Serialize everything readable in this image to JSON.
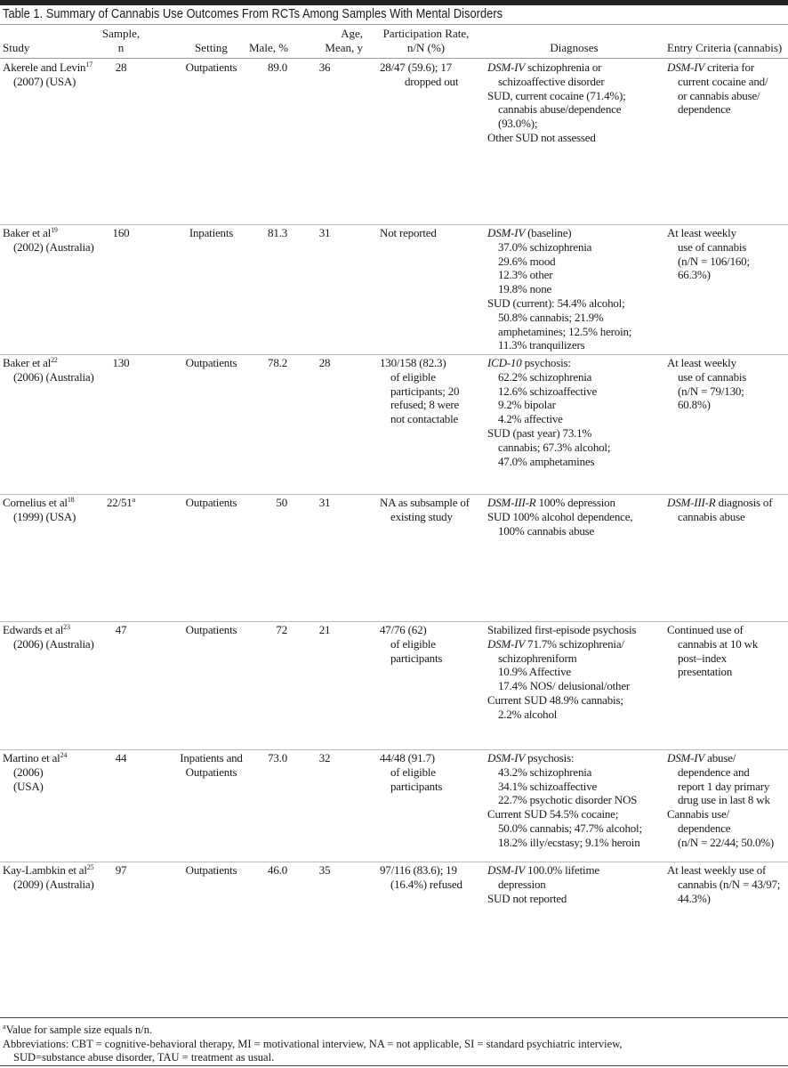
{
  "title": "Table 1. Summary of Cannabis Use Outcomes From RCTs Among Samples With Mental Disorders",
  "headers": {
    "study": "Study",
    "sample": [
      "Sample,",
      "n"
    ],
    "setting": "Setting",
    "male": "Male, %",
    "age": [
      "Age,",
      "Mean, y"
    ],
    "participation": [
      "Participation Rate,",
      "n/N (%)"
    ],
    "diagnoses": "Diagnoses",
    "entry": "Entry Criteria (cannabis)"
  },
  "rows": [
    {
      "study": [
        "Akerele and Levin",
        "(2007) (USA)"
      ],
      "ref": "17",
      "sample": "28",
      "setting": [
        "Outpatients"
      ],
      "male": "89.0",
      "age": "36",
      "participation": [
        "28/47 (59.6); 17",
        "dropped out"
      ],
      "diagnoses": [
        {
          "it": "DSM-IV",
          "t": " schizophrenia or"
        },
        {
          "t": "schizoaffective disorder",
          "sub": true
        },
        {
          "t": "SUD, current cocaine (71.4%);"
        },
        {
          "t": "cannabis abuse/dependence",
          "sub": true
        },
        {
          "t": "(93.0%);",
          "sub": true
        },
        {
          "t": "Other SUD not assessed"
        }
      ],
      "entry": [
        {
          "it": "DSM-IV",
          "t": " criteria for"
        },
        {
          "t": "current cocaine and/",
          "sub": true
        },
        {
          "t": "or cannabis abuse/",
          "sub": true
        },
        {
          "t": "dependence",
          "sub": true
        }
      ]
    },
    {
      "study": [
        "Baker et al",
        "(2002) (Australia)"
      ],
      "ref": "19",
      "sample": "160",
      "setting": [
        "Inpatients"
      ],
      "male": "81.3",
      "age": "31",
      "participation": [
        "Not reported"
      ],
      "diagnoses": [
        {
          "it": "DSM-IV",
          "t": " (baseline)"
        },
        {
          "t": "37.0% schizophrenia",
          "sub": true
        },
        {
          "t": "29.6% mood",
          "sub": true
        },
        {
          "t": "12.3% other",
          "sub": true
        },
        {
          "t": "19.8% none",
          "sub": true
        },
        {
          "t": "SUD (current): 54.4% alcohol;"
        },
        {
          "t": "50.8% cannabis; 21.9%",
          "sub": true
        },
        {
          "t": "amphetamines; 12.5% heroin;",
          "sub": true
        },
        {
          "t": "11.3% tranquilizers",
          "sub": true
        }
      ],
      "entry": [
        {
          "t": "At least weekly"
        },
        {
          "t": "use of cannabis",
          "sub": true
        },
        {
          "t": "(n/N = 106/160;",
          "sub": true
        },
        {
          "t": "66.3%)",
          "sub": true
        }
      ]
    },
    {
      "study": [
        "Baker et al",
        "(2006) (Australia)"
      ],
      "ref": "22",
      "sample": "130",
      "setting": [
        "Outpatients"
      ],
      "male": "78.2",
      "age": "28",
      "participation": [
        "130/158 (82.3)",
        "of eligible",
        "participants; 20",
        "refused; 8 were",
        "not contactable"
      ],
      "diagnoses": [
        {
          "it": "ICD-10",
          "t": " psychosis:"
        },
        {
          "t": "62.2% schizophrenia",
          "sub": true
        },
        {
          "t": "12.6% schizoaffective",
          "sub": true
        },
        {
          "t": "9.2% bipolar",
          "sub": true
        },
        {
          "t": "4.2% affective",
          "sub": true
        },
        {
          "t": "SUD (past year) 73.1%"
        },
        {
          "t": "cannabis; 67.3% alcohol;",
          "sub": true
        },
        {
          "t": "47.0% amphetamines",
          "sub": true
        }
      ],
      "entry": [
        {
          "t": "At least weekly"
        },
        {
          "t": "use of cannabis",
          "sub": true
        },
        {
          "t": "(n/N = 79/130;",
          "sub": true
        },
        {
          "t": "60.8%)",
          "sub": true
        }
      ]
    },
    {
      "study": [
        "Cornelius et al",
        "(1999) (USA)"
      ],
      "ref": "18",
      "sample": "22/51",
      "sample_note": "a",
      "setting": [
        "Outpatients"
      ],
      "male": "50",
      "age": "31",
      "participation": [
        "NA as subsample of",
        "existing study"
      ],
      "diagnoses": [
        {
          "it": "DSM-III-R",
          "t": " 100% depression"
        },
        {
          "t": "SUD 100% alcohol dependence,"
        },
        {
          "t": "100% cannabis abuse",
          "sub": true
        }
      ],
      "entry": [
        {
          "it": "DSM-III-R",
          "t": " diagnosis of"
        },
        {
          "t": "cannabis abuse",
          "sub": true
        }
      ]
    },
    {
      "study": [
        "Edwards et al",
        "(2006) (Australia)"
      ],
      "ref": "23",
      "sample": "47",
      "setting": [
        "Outpatients"
      ],
      "male": "72",
      "age": "21",
      "participation": [
        "47/76 (62)",
        "of eligible",
        "participants"
      ],
      "diagnoses": [
        {
          "t": "Stabilized first-episode psychosis"
        },
        {
          "it": "DSM-IV",
          "t": " 71.7% schizophrenia/"
        },
        {
          "t": "schizophreniform",
          "sub": true
        },
        {
          "t": "10.9% Affective",
          "sub": true
        },
        {
          "t": "17.4% NOS/ delusional/other",
          "sub": true
        },
        {
          "t": "Current SUD 48.9% cannabis;"
        },
        {
          "t": "2.2% alcohol",
          "sub": true
        }
      ],
      "entry": [
        {
          "t": "Continued use of"
        },
        {
          "t": "cannabis at 10 wk",
          "sub": true
        },
        {
          "t": "post–index",
          "sub": true
        },
        {
          "t": "presentation",
          "sub": true
        }
      ]
    },
    {
      "study": [
        "Martino et al",
        " (2006)",
        "(USA)"
      ],
      "ref": "24",
      "sample": "44",
      "setting": [
        "Inpatients and",
        "Outpatients"
      ],
      "male": "73.0",
      "age": "32",
      "participation": [
        "44/48 (91.7)",
        "of eligible",
        "participants"
      ],
      "diagnoses": [
        {
          "it": "DSM-IV",
          "t": " psychosis:"
        },
        {
          "t": "43.2% schizophrenia",
          "sub": true
        },
        {
          "t": "34.1% schizoaffective",
          "sub": true
        },
        {
          "t": "22.7% psychotic disorder NOS",
          "sub": true
        },
        {
          "t": "Current SUD 54.5% cocaine;"
        },
        {
          "t": "50.0% cannabis; 47.7% alcohol;",
          "sub": true
        },
        {
          "t": "18.2% illy/ecstasy; 9.1% heroin",
          "sub": true
        }
      ],
      "entry": [
        {
          "it": "DSM-IV",
          "t": " abuse/"
        },
        {
          "t": "dependence and",
          "sub": true
        },
        {
          "t": "report 1 day primary",
          "sub": true
        },
        {
          "t": "drug use in last 8 wk",
          "sub": true
        },
        {
          "t": "Cannabis use/"
        },
        {
          "t": "dependence",
          "sub": true
        },
        {
          "t": "(n/N = 22/44; 50.0%)",
          "sub": true
        }
      ]
    },
    {
      "study": [
        "Kay-Lambkin et al",
        "(2009) (Australia)"
      ],
      "ref": "25",
      "sample": "97",
      "setting": [
        "Outpatients"
      ],
      "male": "46.0",
      "age": "35",
      "participation": [
        "97/116 (83.6); 19",
        "(16.4%) refused"
      ],
      "diagnoses": [
        {
          "it": "DSM-IV",
          "t": " 100.0% lifetime"
        },
        {
          "t": "depression",
          "sub": true
        },
        {
          "t": "SUD not reported"
        }
      ],
      "entry": [
        {
          "t": "At least weekly use of"
        },
        {
          "t": "cannabis (n/N = 43/97;",
          "sub": true
        },
        {
          "t": "44.3%)",
          "sub": true
        }
      ]
    }
  ],
  "footnotes": {
    "a_mark": "a",
    "a_text": "Value for sample size equals n/n.",
    "abbrev1": "Abbreviations: CBT = cognitive-behavioral therapy, MI = motivational interview, NA = not applicable, SI = standard psychiatric interview,",
    "abbrev2": "SUD=substance abuse disorder, TAU = treatment as usual."
  }
}
